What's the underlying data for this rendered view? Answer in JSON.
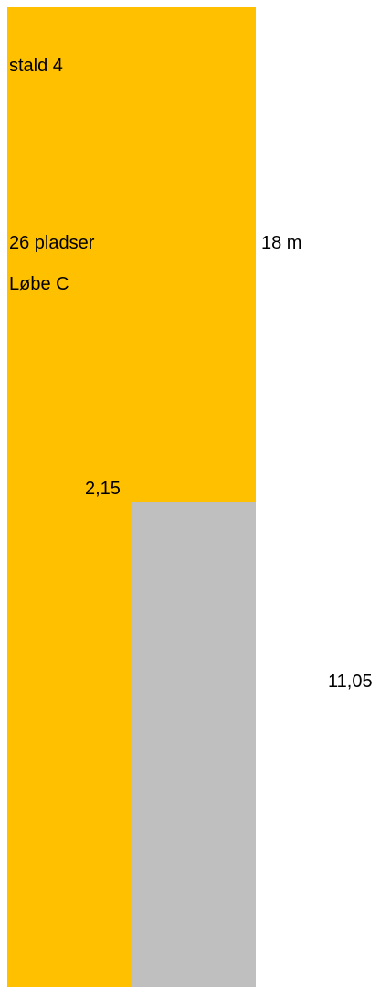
{
  "colors": {
    "stable": "#ffc000",
    "area": "#bfbfbf",
    "background": "#ffffff",
    "text": "#000000"
  },
  "labels": {
    "stable_name": "stald 4",
    "places": "26 pladser",
    "run": "Løbe C",
    "width": "2,15",
    "length": "18 m",
    "grey_length": "11,05"
  }
}
